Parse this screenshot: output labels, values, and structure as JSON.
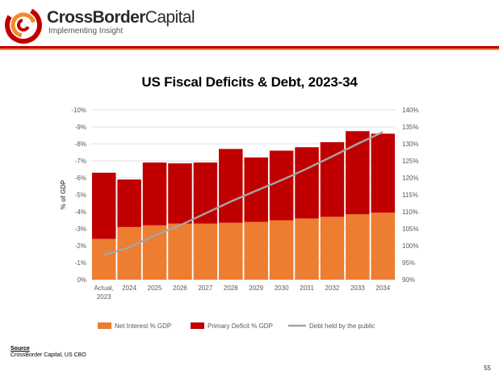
{
  "brand": {
    "name_bold": "CrossBorder",
    "name_regular": "Capital",
    "tagline": "Implementing Insight",
    "primary_color": "#c00000",
    "secondary_color": "#f28c28"
  },
  "page": {
    "title": "US Fiscal Deficits & Debt, 2023-34",
    "source_label": "Source",
    "source_text": "CrossBorder Capital, US CBO",
    "page_number": "55"
  },
  "chart_data": {
    "type": "bar",
    "stacked": true,
    "title": "US Fiscal Deficits & Debt, 2023-34",
    "categories": [
      "Actual,\n2023",
      "2024",
      "2025",
      "2026",
      "2027",
      "2028",
      "2029",
      "2030",
      "2031",
      "2032",
      "2033",
      "2034"
    ],
    "ylabel": "% of GDP",
    "y_left": {
      "min": 0,
      "max": -10,
      "step": -1,
      "ticks": [
        "0%",
        "-1%",
        "-2%",
        "-3%",
        "-4%",
        "-5%",
        "-6%",
        "-7%",
        "-8%",
        "-9%",
        "-10%"
      ]
    },
    "y_right": {
      "min": 90,
      "max": 140,
      "step": 5,
      "ticks": [
        "90%",
        "95%",
        "100%",
        "105%",
        "110%",
        "115%",
        "120%",
        "125%",
        "130%",
        "135%",
        "140%"
      ]
    },
    "series": [
      {
        "name": "Net Interest % GDP",
        "kind": "bar",
        "axis": "left",
        "color": "#ed7d31",
        "values": [
          -2.4,
          -3.1,
          -3.2,
          -3.3,
          -3.3,
          -3.35,
          -3.4,
          -3.5,
          -3.6,
          -3.7,
          -3.85,
          -3.95
        ]
      },
      {
        "name": "Primary Deficit % GDP",
        "kind": "bar",
        "axis": "left",
        "color": "#c00000",
        "values": [
          -3.9,
          -2.8,
          -3.7,
          -3.55,
          -3.6,
          -4.35,
          -3.8,
          -4.1,
          -4.2,
          -4.4,
          -4.9,
          -4.65
        ]
      },
      {
        "name": "Debt held by the public",
        "kind": "line",
        "axis": "right",
        "color": "#a5a5a5",
        "values": [
          97.3,
          99.5,
          103.0,
          106.0,
          109.5,
          113.0,
          116.2,
          119.3,
          122.7,
          126.3,
          130.0,
          133.5
        ]
      }
    ],
    "legend_position": "bottom",
    "grid": true
  }
}
